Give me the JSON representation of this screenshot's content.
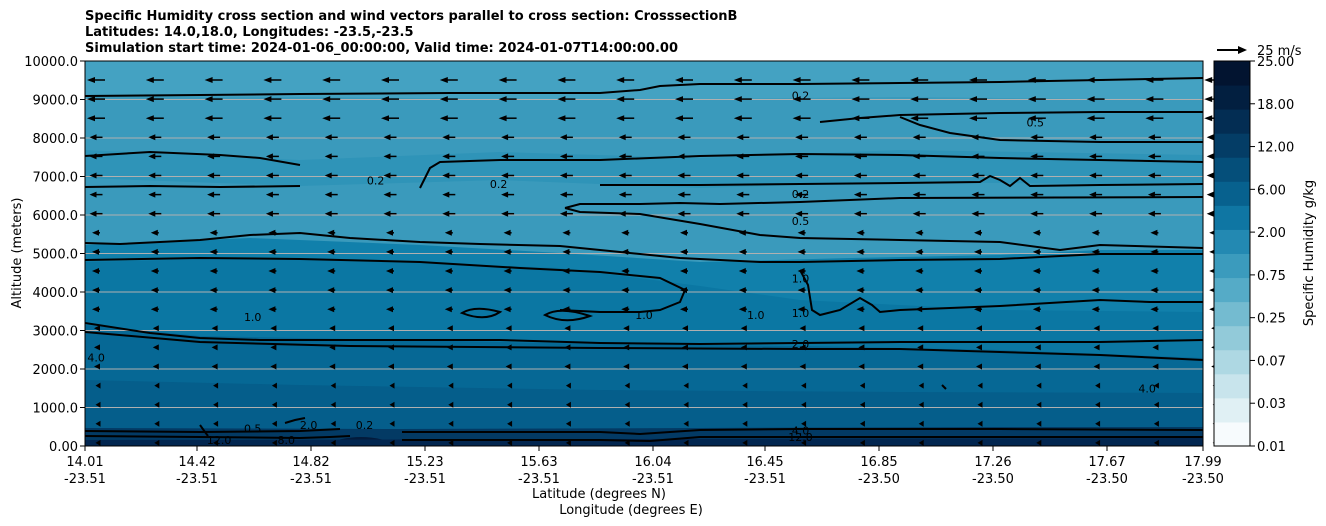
{
  "chart_data": {
    "type": "contourf",
    "title_lines": [
      "Specific Humidity cross section and wind vectors parallel to cross section: CrosssectionB",
      "Latitudes: 14.0,18.0, Longitudes: -23.5,-23.5",
      "Simulation start time: 2024-01-06_00:00:00, Valid time: 2024-01-07T14:00:00.00"
    ],
    "ylabel": "Altitude (meters)",
    "xlabel_lat": "Latitude (degrees N)",
    "xlabel_lon": "Longitude (degrees E)",
    "ylim": [
      0,
      10000
    ],
    "yticks": [
      "0.00",
      "1000.0",
      "2000.0",
      "3000.0",
      "4000.0",
      "5000.0",
      "6000.0",
      "7000.0",
      "8000.0",
      "9000.0",
      "10000.0"
    ],
    "xticks": [
      {
        "lat": "14.01",
        "lon": "-23.51"
      },
      {
        "lat": "14.42",
        "lon": "-23.51"
      },
      {
        "lat": "14.82",
        "lon": "-23.51"
      },
      {
        "lat": "15.23",
        "lon": "-23.51"
      },
      {
        "lat": "15.63",
        "lon": "-23.51"
      },
      {
        "lat": "16.04",
        "lon": "-23.51"
      },
      {
        "lat": "16.45",
        "lon": "-23.51"
      },
      {
        "lat": "16.85",
        "lon": "-23.50"
      },
      {
        "lat": "17.26",
        "lon": "-23.50"
      },
      {
        "lat": "17.67",
        "lon": "-23.50"
      },
      {
        "lat": "17.99",
        "lon": "-23.50"
      }
    ],
    "colorbar": {
      "label": "Specific Humidity g/kg",
      "tick_labels": [
        "0.01",
        "0.03",
        "0.07",
        "0.25",
        "0.75",
        "2.00",
        "6.00",
        "12.00",
        "18.00",
        "25.00"
      ],
      "colors": [
        "#f7fbfd",
        "#e0f0f4",
        "#c8e4ec",
        "#aed8e3",
        "#92cad9",
        "#74bbd0",
        "#55abc7",
        "#3b9bbd",
        "#2389b2",
        "#0f76a3",
        "#07618e",
        "#054f7a",
        "#043d66",
        "#032d53",
        "#021f40",
        "#021430"
      ]
    },
    "quiver_key": "25 m/s",
    "contour_labels": [
      {
        "text": "0.2",
        "x_frac": 0.64,
        "y": 9100
      },
      {
        "text": "0.5",
        "x_frac": 0.85,
        "y": 8400
      },
      {
        "text": "0.2",
        "x_frac": 0.26,
        "y": 6900
      },
      {
        "text": "0.2",
        "x_frac": 0.37,
        "y": 6800
      },
      {
        "text": "0.2",
        "x_frac": 0.64,
        "y": 6550
      },
      {
        "text": "0.5",
        "x_frac": 0.64,
        "y": 5850
      },
      {
        "text": "1.0",
        "x_frac": 0.64,
        "y": 4350
      },
      {
        "text": "1.0",
        "x_frac": 0.15,
        "y": 3350
      },
      {
        "text": "1.0",
        "x_frac": 0.5,
        "y": 3400
      },
      {
        "text": "1.0",
        "x_frac": 0.6,
        "y": 3400
      },
      {
        "text": "1.0",
        "x_frac": 0.64,
        "y": 3450
      },
      {
        "text": "2.0",
        "x_frac": 0.64,
        "y": 2650
      },
      {
        "text": "4.0",
        "x_frac": 0.01,
        "y": 2300
      },
      {
        "text": "4.0",
        "x_frac": 0.95,
        "y": 1500
      },
      {
        "text": "2.0",
        "x_frac": 0.2,
        "y": 550
      },
      {
        "text": "0.5",
        "x_frac": 0.15,
        "y": 450
      },
      {
        "text": "0.2",
        "x_frac": 0.25,
        "y": 550
      },
      {
        "text": "8.0",
        "x_frac": 0.18,
        "y": 150
      },
      {
        "text": "12.0",
        "x_frac": 0.12,
        "y": 150
      },
      {
        "text": "4.0",
        "x_frac": 0.64,
        "y": 400
      },
      {
        "text": "12.0",
        "x_frac": 0.64,
        "y": 230
      }
    ]
  }
}
